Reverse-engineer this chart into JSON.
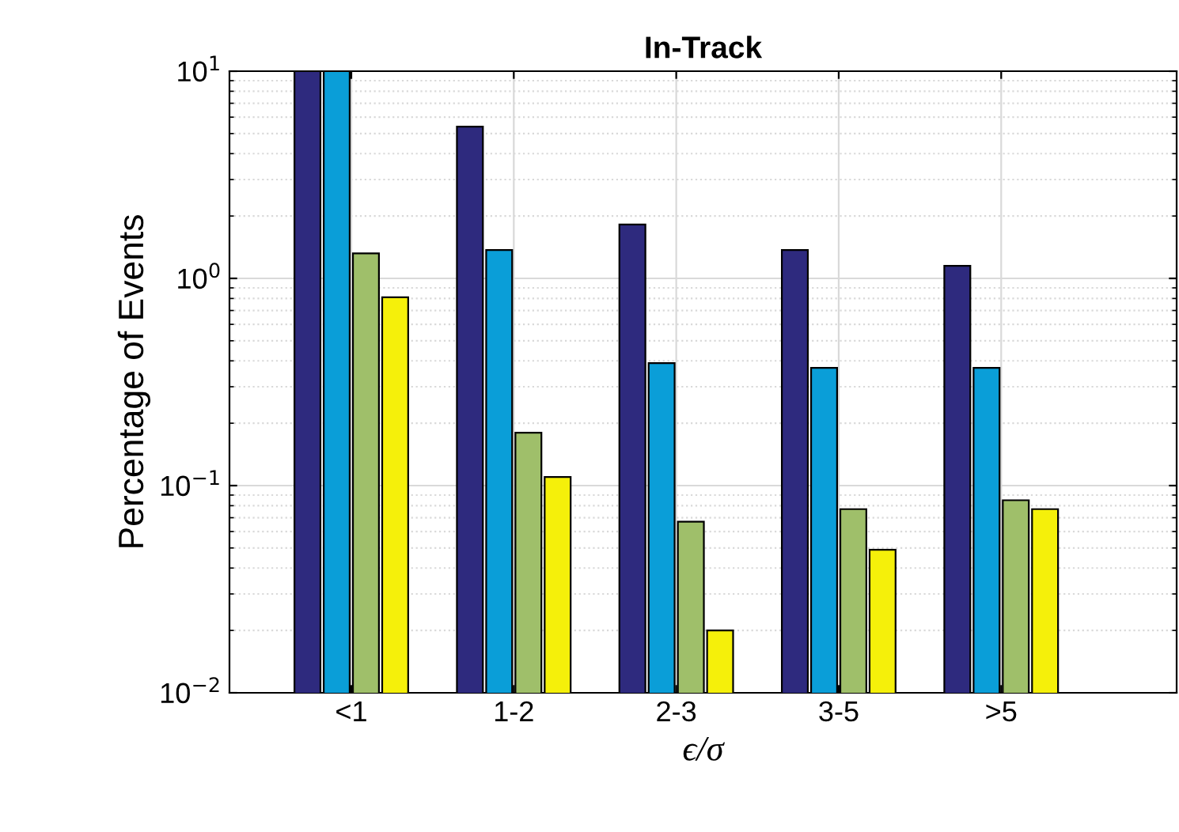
{
  "chart_data": {
    "type": "bar",
    "title": "In-Track",
    "xlabel": "ϵ/σ",
    "ylabel": "Percentage of Events",
    "categories": [
      "<1",
      "1-2",
      "2-3",
      "3-5",
      ">5"
    ],
    "series": [
      {
        "color": "#2e2a7e",
        "values": [
          10,
          5.4,
          1.82,
          1.37,
          1.15
        ]
      },
      {
        "color": "#0a9ed8",
        "values": [
          10,
          1.37,
          0.39,
          0.37,
          0.37
        ]
      },
      {
        "color": "#9fbf6a",
        "values": [
          1.32,
          0.18,
          0.067,
          0.077,
          0.085
        ]
      },
      {
        "color": "#f5f00a",
        "values": [
          0.81,
          0.11,
          0.02,
          0.049,
          0.077
        ]
      }
    ],
    "log": "y",
    "ylim": [
      0.01,
      10
    ],
    "yticks": [
      {
        "value": 0.01,
        "label": "10$^{−2}$"
      },
      {
        "value": 0.1,
        "label": "10$^{−1}$"
      },
      {
        "value": 1,
        "label": "10$^{0}$"
      },
      {
        "value": 10,
        "label": "10$^{1}$"
      }
    ],
    "grid": true
  }
}
